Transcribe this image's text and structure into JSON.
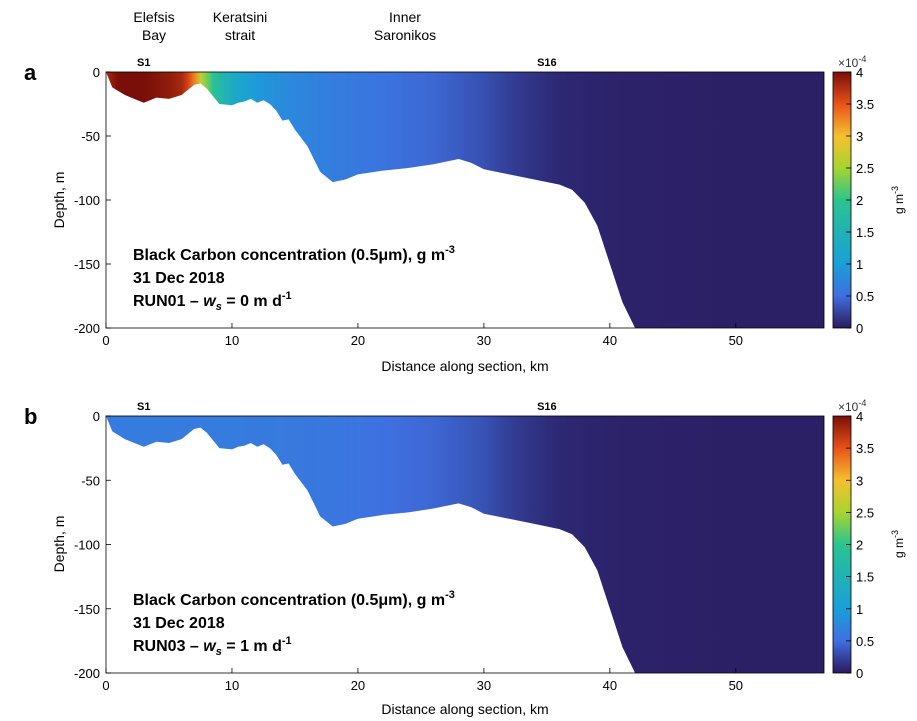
{
  "header_labels": [
    {
      "line1": "Elefsis",
      "line2": "Bay"
    },
    {
      "line1": "Keratsini",
      "line2": "strait"
    },
    {
      "line1": "Inner",
      "line2": "Saronikos"
    }
  ],
  "colors": {
    "c0": "#2a1a5e",
    "c05": "#3f6fe0",
    "c1": "#1a9fd8",
    "c2": "#2ac48f",
    "c25": "#a8d430",
    "c3": "#f5c02f",
    "c35": "#e8521a",
    "c4": "#7a0e08",
    "bathymetry": "#ffffff",
    "text": "#000000"
  },
  "chart_data": [
    {
      "type": "heatmap",
      "panel_label": "a",
      "station_labels": [
        {
          "name": "S1",
          "x": 3
        },
        {
          "name": "S16",
          "x": 35
        }
      ],
      "annotation": {
        "line1_main": "Black Carbon concentration (0.5μm), g m",
        "line1_sup": "-3",
        "line2": "31 Dec 2018",
        "line3_run": "RUN01 – ",
        "line3_ws": "w",
        "line3_ws_sub": "s",
        "line3_eq": " = 0 m d",
        "line3_sup": "-1"
      },
      "xlabel": "Distance along section, km",
      "ylabel": "Depth, m",
      "xlim": [
        0,
        57
      ],
      "ylim": [
        -200,
        0
      ],
      "xticks": [
        "0",
        "10",
        "20",
        "30",
        "40",
        "50"
      ],
      "yticks": [
        "0",
        "-50",
        "-100",
        "-150",
        "-200"
      ],
      "colorbar": {
        "label_main": "g m",
        "label_sup": "-3",
        "scale_base": "×10",
        "scale_exp": "-4",
        "range": [
          0,
          4
        ],
        "ticks": [
          "0",
          "0.5",
          "1",
          "1.5",
          "2",
          "2.5",
          "3",
          "3.5",
          "4"
        ]
      },
      "bottom_profile": {
        "x": [
          0,
          0.5,
          1.5,
          2.5,
          3,
          4,
          5,
          6,
          7,
          7.5,
          8,
          8.5,
          9,
          10,
          10.5,
          11,
          11.5,
          12,
          12.5,
          13,
          13.5,
          14,
          14.5,
          15,
          16,
          17,
          18,
          19,
          20,
          22,
          24,
          26,
          27,
          28,
          29,
          30,
          32,
          34,
          36,
          37,
          38,
          39,
          40,
          41,
          42,
          57
        ],
        "depth": [
          0,
          -12,
          -18,
          -22,
          -24,
          -20,
          -21,
          -18,
          -10,
          -9,
          -13,
          -19,
          -25,
          -26,
          -24,
          -23,
          -21,
          -24,
          -22,
          -25,
          -30,
          -38,
          -37,
          -45,
          -58,
          -78,
          -86,
          -84,
          -80,
          -77,
          -75,
          -72,
          -70,
          -68,
          -71,
          -76,
          -80,
          -84,
          -88,
          -92,
          -102,
          -120,
          -150,
          -180,
          -200,
          -200
        ]
      },
      "concentration_profile": {
        "x": [
          0,
          0.5,
          1,
          2,
          3,
          4,
          5,
          6,
          6.5,
          7,
          7.5,
          8,
          8.5,
          9,
          10,
          11,
          12,
          13,
          15,
          18,
          22,
          26,
          30,
          32,
          34,
          36,
          40,
          45,
          50,
          57
        ],
        "value": [
          3.8,
          3.9,
          4.0,
          4.0,
          4.0,
          3.95,
          3.9,
          3.8,
          3.6,
          3.3,
          2.7,
          2.3,
          2.0,
          1.7,
          1.3,
          1.1,
          0.95,
          0.85,
          0.75,
          0.65,
          0.55,
          0.45,
          0.32,
          0.22,
          0.14,
          0.08,
          0.05,
          0.04,
          0.03,
          0.03
        ]
      }
    },
    {
      "type": "heatmap",
      "panel_label": "b",
      "station_labels": [
        {
          "name": "S1",
          "x": 3
        },
        {
          "name": "S16",
          "x": 35
        }
      ],
      "annotation": {
        "line1_main": "Black Carbon concentration (0.5μm), g m",
        "line1_sup": "-3",
        "line2": "31 Dec 2018",
        "line3_run": "RUN03 – ",
        "line3_ws": "w",
        "line3_ws_sub": "s",
        "line3_eq": " = 1 m d",
        "line3_sup": "-1"
      },
      "xlabel": "Distance along section, km",
      "ylabel": "Depth, m",
      "xlim": [
        0,
        57
      ],
      "ylim": [
        -200,
        0
      ],
      "xticks": [
        "0",
        "10",
        "20",
        "30",
        "40",
        "50"
      ],
      "yticks": [
        "0",
        "-50",
        "-100",
        "-150",
        "-200"
      ],
      "colorbar": {
        "label_main": "g m",
        "label_sup": "-3",
        "scale_base": "×10",
        "scale_exp": "-4",
        "range": [
          0,
          4
        ],
        "ticks": [
          "0",
          "0.5",
          "1",
          "1.5",
          "2",
          "2.5",
          "3",
          "3.5",
          "4"
        ]
      },
      "bottom_profile": {
        "x": [
          0,
          0.5,
          1.5,
          2.5,
          3,
          4,
          5,
          6,
          7,
          7.5,
          8,
          8.5,
          9,
          10,
          10.5,
          11,
          11.5,
          12,
          12.5,
          13,
          13.5,
          14,
          14.5,
          15,
          16,
          17,
          18,
          19,
          20,
          22,
          24,
          26,
          27,
          28,
          29,
          30,
          32,
          34,
          36,
          37,
          38,
          39,
          40,
          41,
          42,
          57
        ],
        "depth": [
          0,
          -12,
          -18,
          -22,
          -24,
          -20,
          -21,
          -18,
          -10,
          -9,
          -13,
          -19,
          -25,
          -26,
          -24,
          -23,
          -21,
          -24,
          -22,
          -25,
          -30,
          -38,
          -37,
          -45,
          -58,
          -78,
          -86,
          -84,
          -80,
          -77,
          -75,
          -72,
          -70,
          -68,
          -71,
          -76,
          -80,
          -84,
          -88,
          -92,
          -102,
          -120,
          -150,
          -180,
          -200,
          -200
        ]
      },
      "concentration_profile": {
        "x": [
          0,
          5,
          10,
          15,
          18,
          22,
          26,
          30,
          32,
          34,
          36,
          40,
          45,
          50,
          57
        ],
        "value": [
          0.62,
          0.62,
          0.62,
          0.6,
          0.58,
          0.52,
          0.45,
          0.33,
          0.22,
          0.14,
          0.08,
          0.05,
          0.04,
          0.03,
          0.03
        ]
      }
    }
  ]
}
